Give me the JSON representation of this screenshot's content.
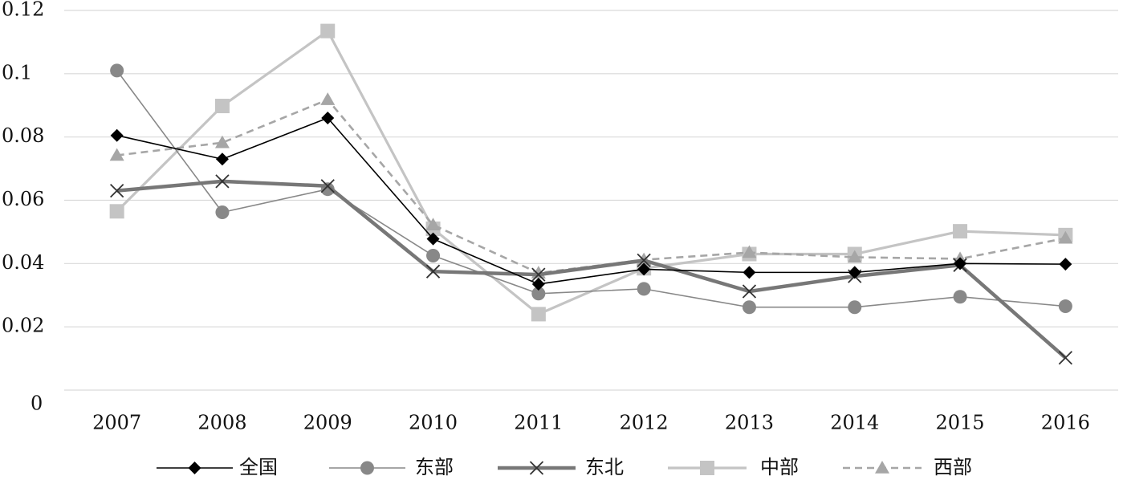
{
  "chart_data": {
    "type": "line",
    "title": "",
    "xlabel": "",
    "ylabel": "",
    "categories": [
      "2007",
      "2008",
      "2009",
      "2010",
      "2011",
      "2012",
      "2013",
      "2014",
      "2015",
      "2016"
    ],
    "ylim": [
      0,
      0.12
    ],
    "yticks": [
      0,
      0.02,
      0.04,
      0.06,
      0.08,
      0.1,
      0.12
    ],
    "ytick_labels": [
      "0",
      "0.02",
      "0.04",
      "0.06",
      "0.08",
      "0.1",
      "0.12"
    ],
    "grid": "horizontal",
    "legend_position": "bottom",
    "series": [
      {
        "name": "全国",
        "color": "#000000",
        "marker": "diamond",
        "dash": "solid",
        "values": [
          0.0805,
          0.073,
          0.086,
          0.0478,
          0.0335,
          0.0382,
          0.0372,
          0.0372,
          0.04,
          0.0398
        ]
      },
      {
        "name": "东部",
        "color": "#888888",
        "marker": "circle",
        "dash": "solid",
        "values": [
          0.101,
          0.0562,
          0.0635,
          0.0425,
          0.0305,
          0.032,
          0.0262,
          0.0262,
          0.0295,
          0.0265
        ]
      },
      {
        "name": "东北",
        "color": "#777777",
        "marker": "x",
        "dash": "solid",
        "values": [
          0.063,
          0.066,
          0.0645,
          0.0375,
          0.0365,
          0.041,
          0.0312,
          0.036,
          0.0395,
          0.0102
        ]
      },
      {
        "name": "中部",
        "color": "#c4c4c4",
        "marker": "square",
        "dash": "solid",
        "values": [
          0.0565,
          0.0898,
          0.1135,
          0.051,
          0.024,
          0.0385,
          0.043,
          0.043,
          0.0502,
          0.049
        ]
      },
      {
        "name": "西部",
        "color": "#a6a6a6",
        "marker": "triangle",
        "dash": "dashed",
        "values": [
          0.0742,
          0.0782,
          0.0918,
          0.0522,
          0.037,
          0.0412,
          0.0435,
          0.042,
          0.0415,
          0.048
        ]
      }
    ]
  }
}
